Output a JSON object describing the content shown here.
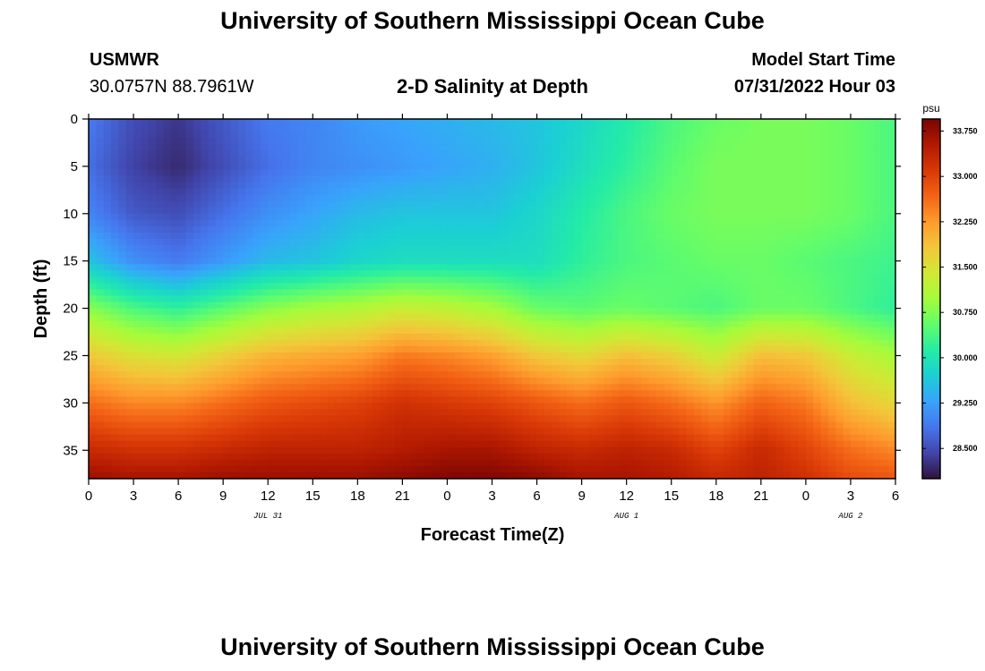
{
  "header": {
    "title": "University of Southern Mississippi Ocean Cube",
    "station": "USMWR",
    "coords": "30.0757N  88.7961W",
    "subtitle": "2-D Salinity at Depth",
    "model_start_label": "Model Start Time",
    "model_start_value": "07/31/2022 Hour 03"
  },
  "footer": {
    "title": "University of Southern Mississippi Ocean Cube"
  },
  "colorbar": {
    "unit": "psu",
    "tick_labels": [
      "33.750",
      "33.000",
      "32.250",
      "31.500",
      "30.750",
      "30.000",
      "29.250",
      "28.500"
    ],
    "range": [
      28.0,
      33.95
    ],
    "colors": [
      "#30123b",
      "#4145ab",
      "#4675ed",
      "#39a2fc",
      "#1bcfd4",
      "#24eca6",
      "#61fc6c",
      "#a4fc3b",
      "#d1e834",
      "#f3c63a",
      "#fe9b2d",
      "#f36315",
      "#d93806",
      "#b11901",
      "#7a0403"
    ]
  },
  "chart_data": {
    "type": "heatmap",
    "title": "2-D Salinity at Depth",
    "xlabel": "Forecast Time(Z)",
    "ylabel": "Depth (ft)",
    "x_tick_labels": [
      "0",
      "3",
      "6",
      "9",
      "12",
      "15",
      "18",
      "21",
      "0",
      "3",
      "6",
      "9",
      "12",
      "15",
      "18",
      "21",
      "0",
      "3",
      "6"
    ],
    "x_range_hours": [
      0,
      54
    ],
    "date_labels": [
      {
        "text": "JUL 31",
        "hour": 12
      },
      {
        "text": "AUG 1",
        "hour": 36
      },
      {
        "text": "AUG 2",
        "hour": 51
      }
    ],
    "y_tick_labels": [
      "0",
      "5",
      "10",
      "15",
      "20",
      "25",
      "30",
      "35"
    ],
    "y_range_ft": [
      0,
      38
    ],
    "y_inverted": true,
    "value_unit": "psu",
    "hours": [
      0,
      3,
      6,
      9,
      12,
      15,
      18,
      21,
      24,
      27,
      30,
      33,
      36,
      39,
      42,
      45,
      48,
      51,
      54
    ],
    "depths_ft": [
      0,
      5,
      10,
      15,
      20,
      25,
      30,
      35,
      38
    ],
    "salinity": [
      [
        28.9,
        28.5,
        28.3,
        28.6,
        28.9,
        29.0,
        29.2,
        29.3,
        29.4,
        29.5,
        29.6,
        29.8,
        30.1,
        30.4,
        30.6,
        30.7,
        30.7,
        30.6,
        30.4
      ],
      [
        28.8,
        28.4,
        28.2,
        28.5,
        28.8,
        29.0,
        29.1,
        29.2,
        29.3,
        29.4,
        29.6,
        29.9,
        30.2,
        30.5,
        30.7,
        30.7,
        30.7,
        30.6,
        30.4
      ],
      [
        29.0,
        28.6,
        28.5,
        28.8,
        29.1,
        29.3,
        29.5,
        29.6,
        29.6,
        29.6,
        29.8,
        30.1,
        30.4,
        30.6,
        30.7,
        30.7,
        30.7,
        30.6,
        30.4
      ],
      [
        29.6,
        29.1,
        28.9,
        29.2,
        29.5,
        29.6,
        29.8,
        29.9,
        29.9,
        29.9,
        29.9,
        30.2,
        30.4,
        30.5,
        30.6,
        30.6,
        30.5,
        30.4,
        30.3
      ],
      [
        30.8,
        30.4,
        30.2,
        30.5,
        30.8,
        31.0,
        31.1,
        31.3,
        31.2,
        31.0,
        30.6,
        30.5,
        30.6,
        30.5,
        30.4,
        30.6,
        30.6,
        30.4,
        30.2
      ],
      [
        31.8,
        31.5,
        31.4,
        31.7,
        32.0,
        32.1,
        32.2,
        32.5,
        32.4,
        32.2,
        31.8,
        31.6,
        31.9,
        31.7,
        31.3,
        31.9,
        31.8,
        31.3,
        31.0
      ],
      [
        32.6,
        32.4,
        32.4,
        32.6,
        32.8,
        32.9,
        33.0,
        33.2,
        33.1,
        33.0,
        32.8,
        32.6,
        32.8,
        32.6,
        32.3,
        32.7,
        32.5,
        31.9,
        31.6
      ],
      [
        33.3,
        33.2,
        33.2,
        33.3,
        33.4,
        33.4,
        33.4,
        33.5,
        33.6,
        33.6,
        33.4,
        33.3,
        33.4,
        33.3,
        33.0,
        33.3,
        33.0,
        32.6,
        32.4
      ],
      [
        33.7,
        33.6,
        33.6,
        33.7,
        33.7,
        33.7,
        33.7,
        33.8,
        33.9,
        33.9,
        33.8,
        33.6,
        33.6,
        33.5,
        33.3,
        33.4,
        33.2,
        32.9,
        32.8
      ]
    ]
  }
}
